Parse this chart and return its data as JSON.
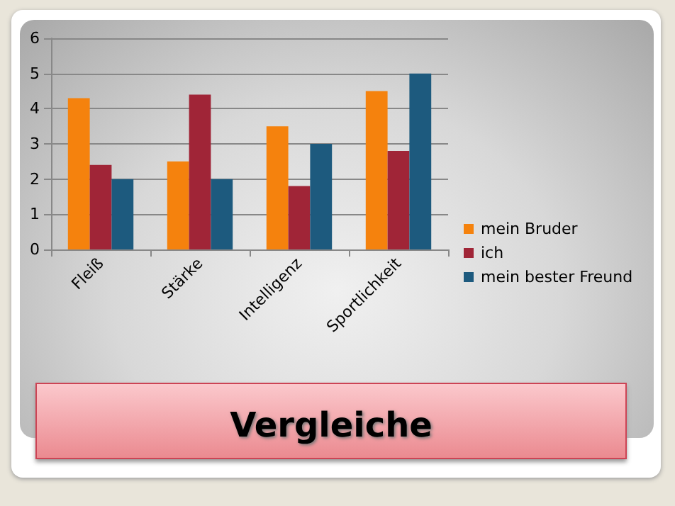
{
  "chart_data": {
    "type": "bar",
    "title": "Vergleiche",
    "categories": [
      "Fleiß",
      "Stärke",
      "Intelligenz",
      "Sportlichkeit"
    ],
    "series": [
      {
        "name": "mein Bruder",
        "color": "#f5820d",
        "values": [
          4.3,
          2.5,
          3.5,
          4.5
        ]
      },
      {
        "name": "ich",
        "color": "#a02537",
        "values": [
          2.4,
          4.4,
          1.8,
          2.8
        ]
      },
      {
        "name": "mein bester Freund",
        "color": "#1d5a7e",
        "values": [
          2,
          2,
          3,
          5
        ]
      }
    ],
    "ylim": [
      0,
      6
    ],
    "yticks": [
      0,
      1,
      2,
      3,
      4,
      5,
      6
    ],
    "grid": "y",
    "legend": "right"
  }
}
